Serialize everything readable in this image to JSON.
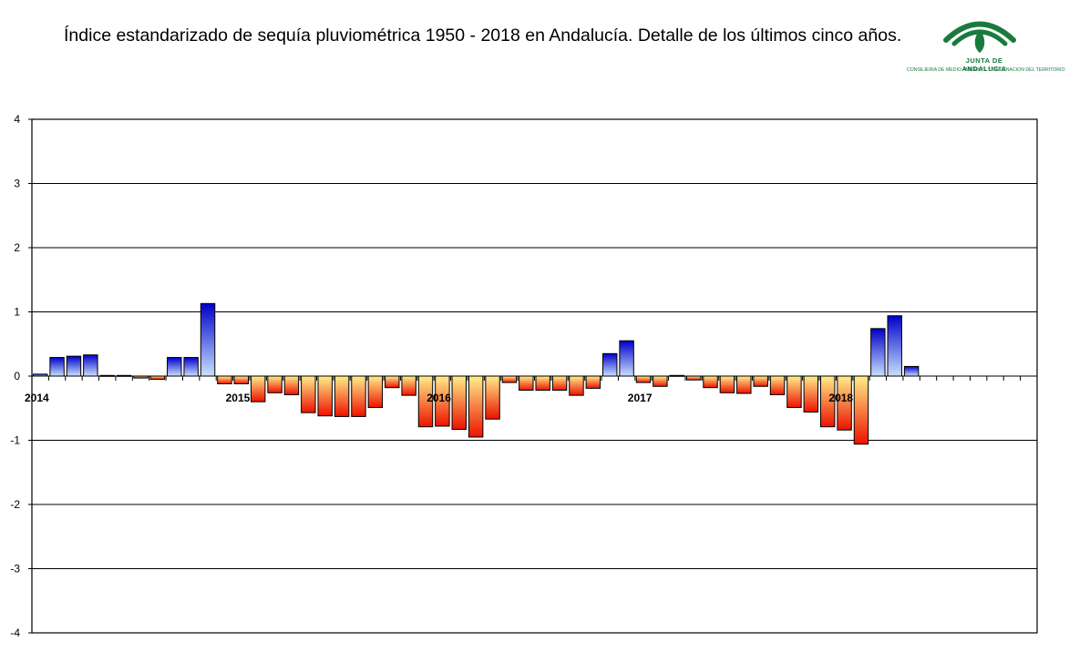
{
  "header": {
    "title": "Índice estandarizado de sequía pluviométrica 1950 - 2018 en Andalucía. Detalle de los últimos cinco años."
  },
  "logo": {
    "name": "JUNTA DE ANDALUCIA",
    "department": "CONSEJERIA DE MEDIO AMBIENTE Y ORDENACION DEL TERRITORIO"
  },
  "colors": {
    "brand_green": "#1a7a3e",
    "positive_top": "#0000c8",
    "positive_bottom": "#c8e0ff",
    "negative_top": "#ffee88",
    "negative_bottom": "#ee1100"
  },
  "chart_data": {
    "type": "bar",
    "title": "",
    "xlabel": "",
    "ylabel": "",
    "ylim": [
      -4,
      4
    ],
    "yticks": [
      4,
      3,
      2,
      1,
      0,
      -1,
      -2,
      -3,
      -4
    ],
    "grid": true,
    "legend": "none",
    "year_labels": [
      {
        "label": "2014",
        "index": 0
      },
      {
        "label": "2015",
        "index": 12
      },
      {
        "label": "2016",
        "index": 24
      },
      {
        "label": "2017",
        "index": 36
      },
      {
        "label": "2018",
        "index": 48
      }
    ],
    "values": [
      0.03,
      0.29,
      0.31,
      0.33,
      0.01,
      0.01,
      -0.03,
      -0.05,
      0.29,
      0.29,
      1.13,
      -0.12,
      -0.12,
      -0.4,
      -0.26,
      -0.29,
      -0.57,
      -0.62,
      -0.63,
      -0.63,
      -0.49,
      -0.18,
      -0.3,
      -0.79,
      -0.78,
      -0.83,
      -0.95,
      -0.67,
      -0.1,
      -0.22,
      -0.22,
      -0.22,
      -0.3,
      -0.19,
      0.35,
      0.55,
      -0.1,
      -0.16,
      0.01,
      -0.06,
      -0.18,
      -0.26,
      -0.27,
      -0.16,
      -0.29,
      -0.49,
      -0.56,
      -0.79,
      -0.84,
      -1.06,
      0.74,
      0.94,
      0.15,
      0,
      0,
      0,
      0,
      0,
      0,
      0
    ]
  }
}
